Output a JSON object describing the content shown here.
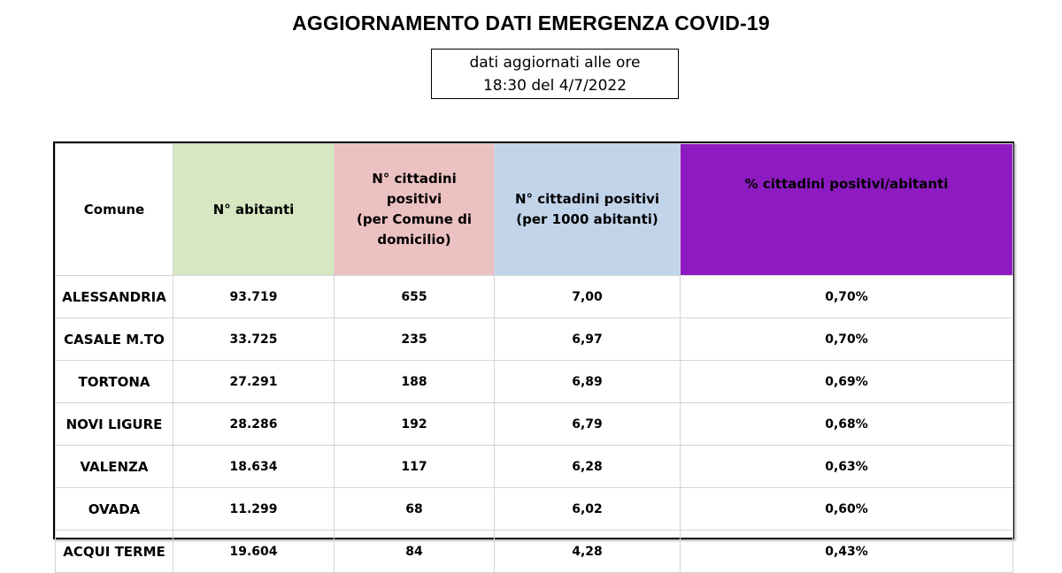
{
  "title": "AGGIORNAMENTO DATI EMERGENZA COVID-19",
  "subtitle": {
    "line1": "dati aggiornati alle ore",
    "line2": "18:30 del 4/7/2022"
  },
  "colors": {
    "abitanti_header": "#d6e7c1",
    "positivi_header": "#ecc1c1",
    "per1000_header": "#c1d4ea",
    "percentuale_header": "#8e1bc1"
  },
  "table": {
    "headers": {
      "comune": "Comune",
      "abitanti": "N° abitanti",
      "positivi": [
        "N° cittadini",
        "positivi",
        "(per Comune di",
        "domicilio)"
      ],
      "per1000": [
        "N° cittadini positivi",
        "(per 1000 abitanti)"
      ],
      "percentuale": "% cittadini positivi/abitanti"
    },
    "rows": [
      {
        "comune": "ALESSANDRIA",
        "abitanti": "93.719",
        "positivi": "655",
        "per1000": "7,00",
        "percentuale": "0,70%"
      },
      {
        "comune": "CASALE M.TO",
        "abitanti": "33.725",
        "positivi": "235",
        "per1000": "6,97",
        "percentuale": "0,70%"
      },
      {
        "comune": "TORTONA",
        "abitanti": "27.291",
        "positivi": "188",
        "per1000": "6,89",
        "percentuale": "0,69%"
      },
      {
        "comune": "NOVI LIGURE",
        "abitanti": "28.286",
        "positivi": "192",
        "per1000": "6,79",
        "percentuale": "0,68%"
      },
      {
        "comune": "VALENZA",
        "abitanti": "18.634",
        "positivi": "117",
        "per1000": "6,28",
        "percentuale": "0,63%"
      },
      {
        "comune": "OVADA",
        "abitanti": "11.299",
        "positivi": "68",
        "per1000": "6,02",
        "percentuale": "0,60%"
      },
      {
        "comune": "ACQUI TERME",
        "abitanti": "19.604",
        "positivi": "84",
        "per1000": "4,28",
        "percentuale": "0,43%"
      }
    ]
  }
}
